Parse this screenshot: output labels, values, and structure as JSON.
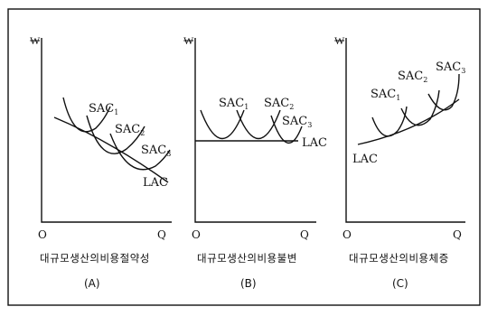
{
  "panels": [
    {
      "id": "A",
      "y_axis_label": "₩",
      "origin_label": "O",
      "x_axis_label": "Q",
      "curve_labels": [
        {
          "name": "SAC",
          "sub": "1"
        },
        {
          "name": "SAC",
          "sub": "2"
        },
        {
          "name": "SAC",
          "sub": "3"
        }
      ],
      "lac_label": "LAC",
      "caption": "대규모생산의비용절약성",
      "tag": "(A)"
    },
    {
      "id": "B",
      "y_axis_label": "₩",
      "origin_label": "O",
      "x_axis_label": "Q",
      "curve_labels": [
        {
          "name": "SAC",
          "sub": "1"
        },
        {
          "name": "SAC",
          "sub": "2"
        },
        {
          "name": "SAC",
          "sub": "3"
        }
      ],
      "lac_label": "LAC",
      "caption": "대규모생산의비용불변",
      "tag": "(B)"
    },
    {
      "id": "C",
      "y_axis_label": "₩",
      "origin_label": "O",
      "x_axis_label": "Q",
      "curve_labels": [
        {
          "name": "SAC",
          "sub": "1"
        },
        {
          "name": "SAC",
          "sub": "2"
        },
        {
          "name": "SAC",
          "sub": "3"
        }
      ],
      "lac_label": "LAC",
      "caption": "대규모생산의비용체증",
      "tag": "(C)"
    }
  ]
}
